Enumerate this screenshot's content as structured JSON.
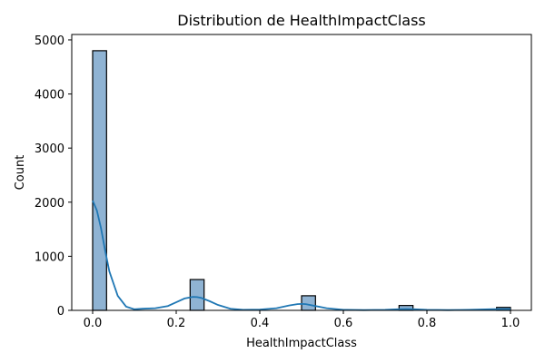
{
  "chart_data": {
    "type": "bar",
    "title": "Distribution de HealthImpactClass",
    "xlabel": "HealthImpactClass",
    "ylabel": "Count",
    "xlim": [
      -0.05,
      1.05
    ],
    "ylim": [
      0,
      5100
    ],
    "xticks": [
      0.0,
      0.2,
      0.4,
      0.6,
      0.8,
      1.0
    ],
    "xtick_labels": [
      "0.0",
      "0.2",
      "0.4",
      "0.6",
      "0.8",
      "1.0"
    ],
    "yticks": [
      0,
      1000,
      2000,
      3000,
      4000,
      5000
    ],
    "ytick_labels": [
      "0",
      "1000",
      "2000",
      "3000",
      "4000",
      "5000"
    ],
    "grid": false,
    "legend": "none",
    "bars": [
      {
        "x0": 0.0,
        "x1": 0.0333,
        "value": 4800
      },
      {
        "x0": 0.2333,
        "x1": 0.2667,
        "value": 570
      },
      {
        "x0": 0.5,
        "x1": 0.5333,
        "value": 270
      },
      {
        "x0": 0.7333,
        "x1": 0.7667,
        "value": 90
      },
      {
        "x0": 0.9667,
        "x1": 1.0,
        "value": 55
      }
    ],
    "bar_color": "#8fb3d3",
    "kde": {
      "color": "#1f77b4",
      "x": [
        0.0,
        0.01,
        0.02,
        0.03,
        0.04,
        0.06,
        0.08,
        0.1,
        0.12,
        0.15,
        0.18,
        0.2,
        0.22,
        0.24,
        0.25,
        0.26,
        0.28,
        0.3,
        0.33,
        0.36,
        0.4,
        0.44,
        0.47,
        0.49,
        0.5,
        0.51,
        0.53,
        0.56,
        0.6,
        0.65,
        0.7,
        0.73,
        0.75,
        0.77,
        0.8,
        0.85,
        0.9,
        0.95,
        0.98,
        1.0
      ],
      "y": [
        2030,
        1850,
        1520,
        1100,
        720,
        270,
        70,
        20,
        30,
        40,
        80,
        150,
        220,
        250,
        245,
        230,
        170,
        100,
        30,
        10,
        15,
        40,
        90,
        115,
        120,
        115,
        85,
        40,
        10,
        5,
        10,
        20,
        25,
        20,
        10,
        5,
        10,
        20,
        25,
        25
      ]
    }
  }
}
